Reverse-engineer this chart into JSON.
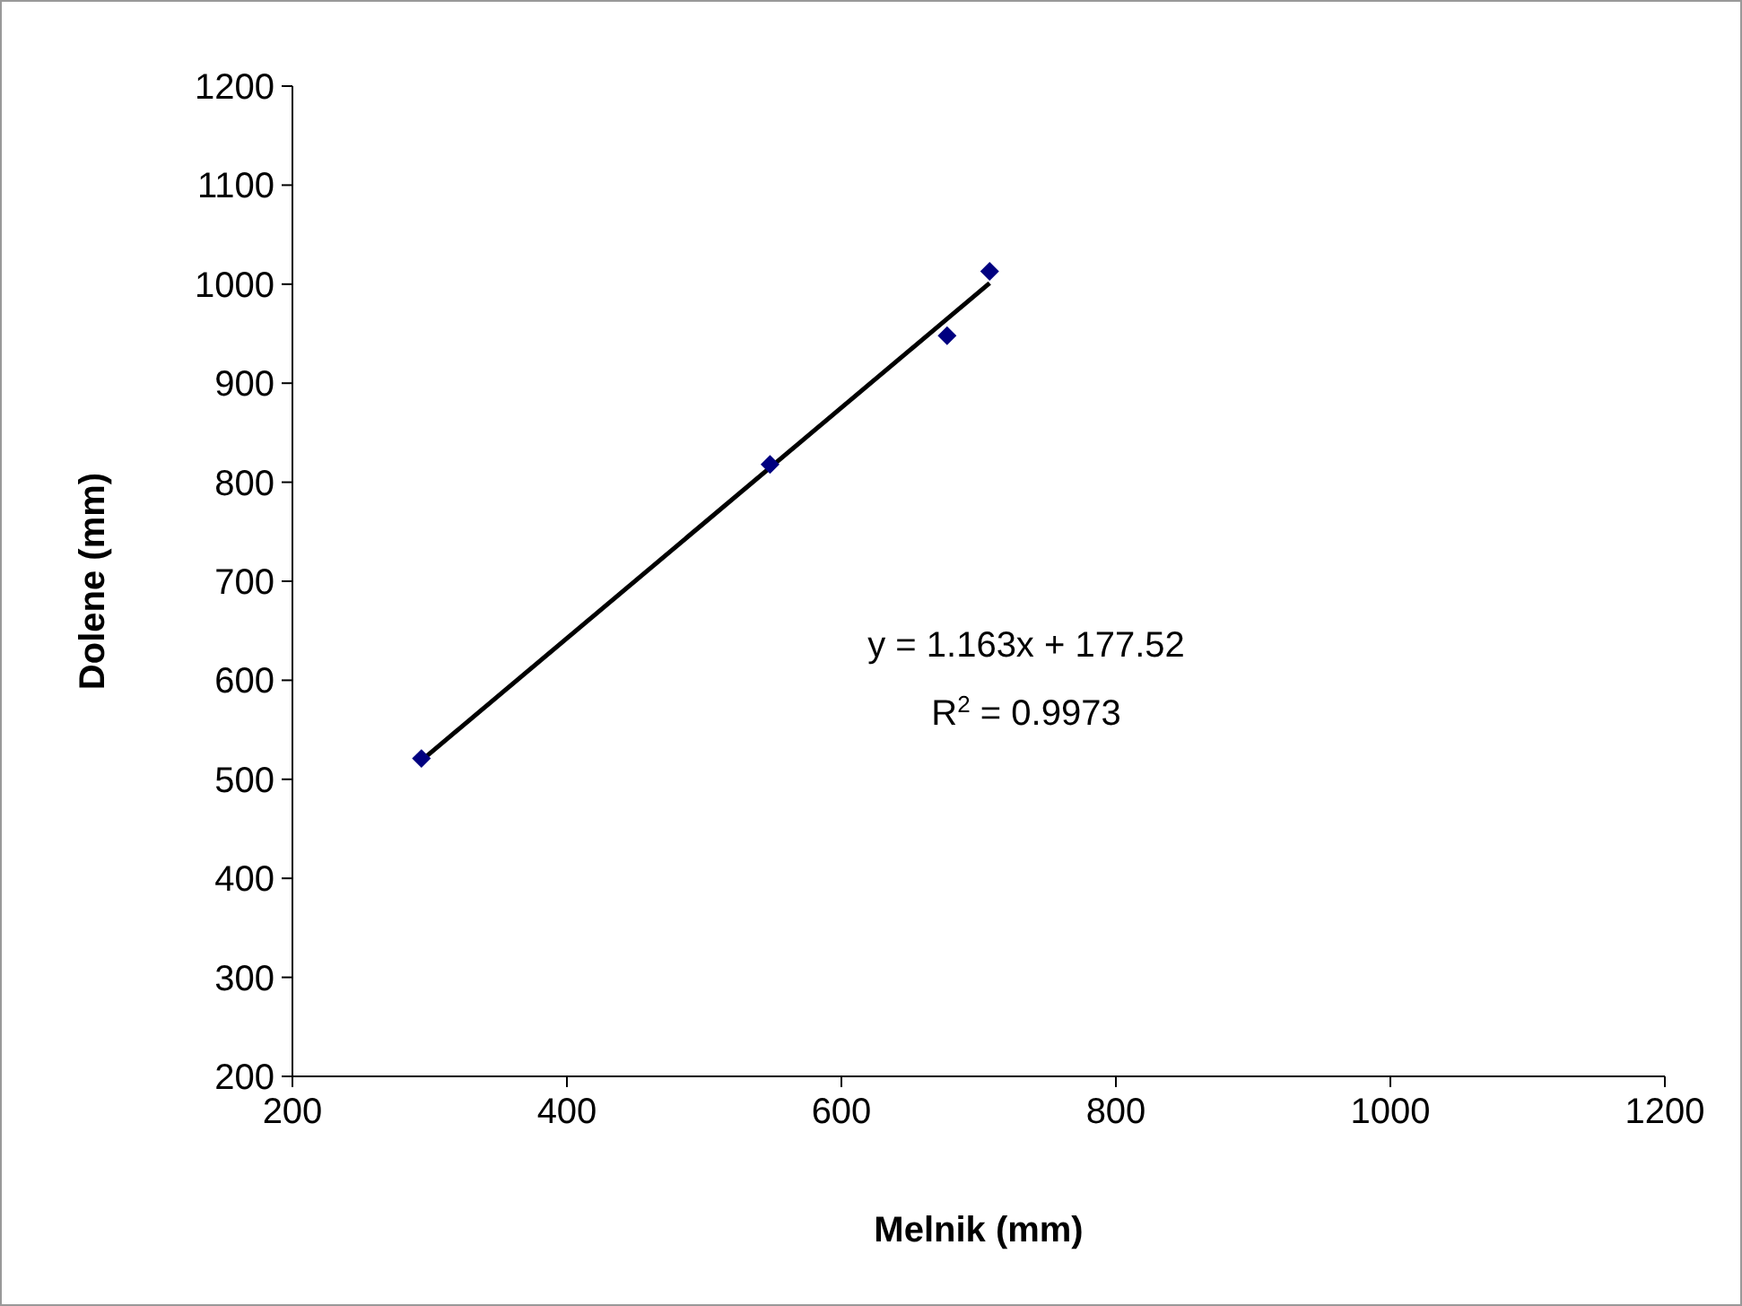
{
  "chart_data": {
    "type": "scatter",
    "xlabel": "Melnik (mm)",
    "ylabel": "Dolene (mm)",
    "grid": false,
    "xlim": [
      200,
      1200
    ],
    "xticks": [
      200,
      400,
      600,
      800,
      1000,
      1200
    ],
    "ylim": [
      200,
      1200
    ],
    "yticks": [
      200,
      300,
      400,
      500,
      600,
      700,
      800,
      900,
      1000,
      1100,
      1200
    ],
    "series": [
      {
        "color": "#000080",
        "marker": "diamond",
        "x": [
          294,
          548,
          677,
          708
        ],
        "values": [
          521,
          818,
          948,
          1013
        ]
      },
      {
        "type": "line",
        "marker": "none",
        "color": "#000000",
        "x": [
          294,
          708
        ],
        "values": [
          519,
          1001
        ]
      }
    ],
    "annotations": [
      "y = 1.163x + 177.52",
      "R$^{2}$ = 0.9973"
    ]
  }
}
